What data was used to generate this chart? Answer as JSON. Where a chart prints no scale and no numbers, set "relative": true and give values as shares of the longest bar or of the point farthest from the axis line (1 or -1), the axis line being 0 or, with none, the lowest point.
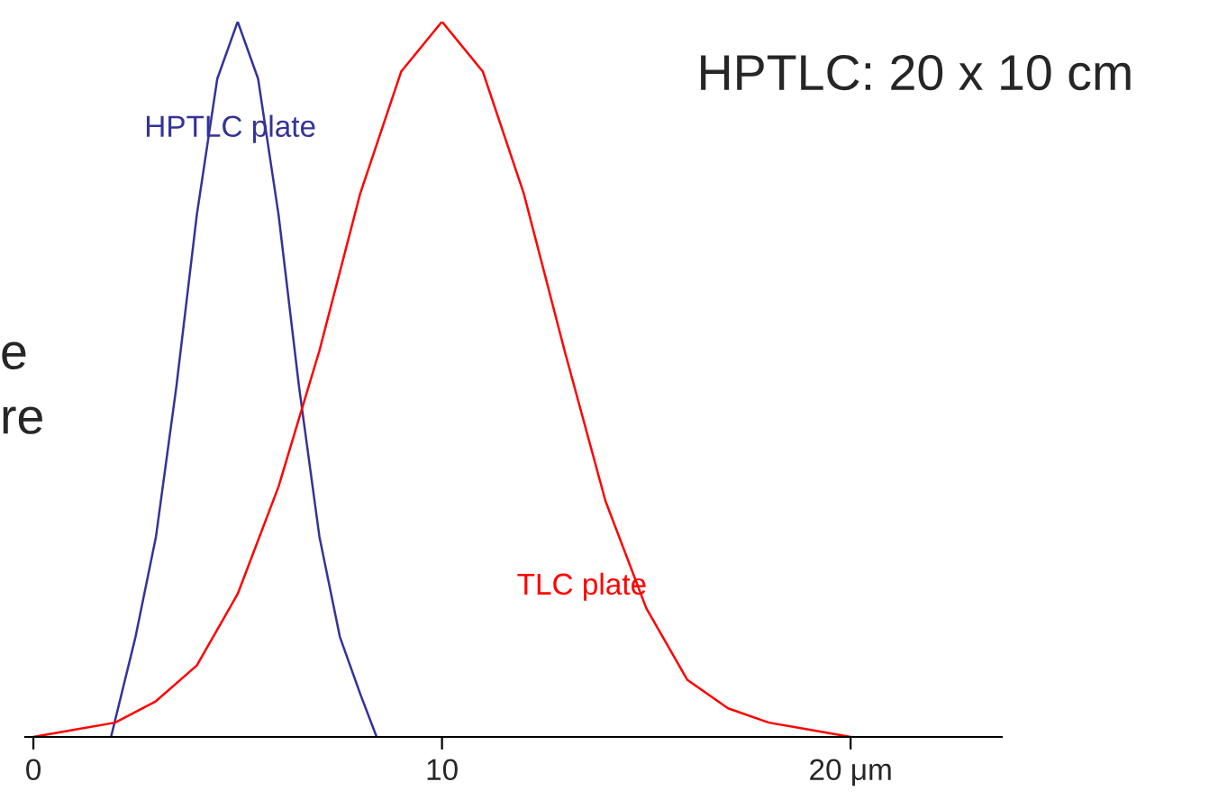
{
  "chart_data": {
    "type": "line",
    "title": "HPTLC: 20 x 10 cm",
    "relative": true,
    "xlim": [
      -0.2,
      23.7
    ],
    "xticks": [
      0,
      10,
      {
        "value": 20,
        "label": "20 μm"
      }
    ],
    "series": [
      {
        "name": "HPTLC plate",
        "color": "#333399",
        "x": [
          1.9,
          2.5,
          3,
          3.5,
          4,
          4.5,
          5,
          5.5,
          6,
          6.5,
          7,
          7.5,
          8,
          8.4
        ],
        "values": [
          0,
          0.14,
          0.28,
          0.49,
          0.73,
          0.92,
          1,
          0.92,
          0.73,
          0.49,
          0.28,
          0.14,
          0.06,
          0
        ]
      },
      {
        "name": "TLC plate",
        "color": "#ff0000",
        "x": [
          0,
          1,
          2,
          3,
          4,
          5,
          6,
          7,
          8,
          9,
          10,
          11,
          12,
          13,
          14,
          15,
          16,
          17,
          18,
          19,
          20
        ],
        "values": [
          0,
          0.01,
          0.02,
          0.05,
          0.1,
          0.2,
          0.35,
          0.54,
          0.76,
          0.93,
          1,
          0.93,
          0.76,
          0.54,
          0.33,
          0.18,
          0.08,
          0.04,
          0.02,
          0.01,
          0
        ]
      }
    ],
    "annotations": [
      "e",
      "re"
    ],
    "grid": false,
    "legend": false,
    "marker": "none",
    "line_style": "solid"
  }
}
